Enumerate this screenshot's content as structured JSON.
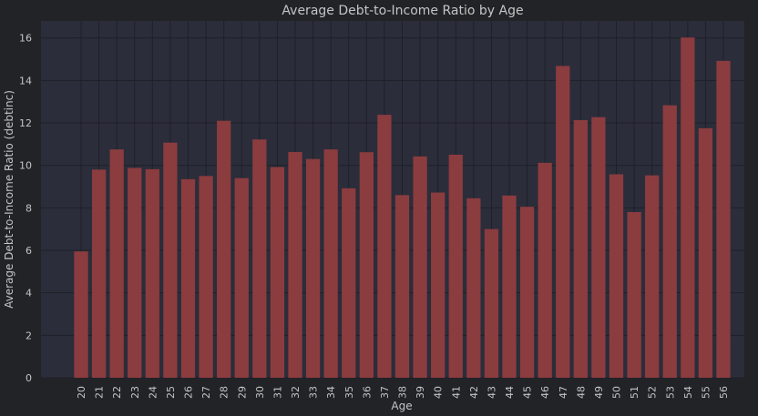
{
  "chart_data": {
    "type": "bar",
    "title": "Average Debt-to-Income Ratio by Age",
    "xlabel": "Age",
    "ylabel": "Average Debt-to-Income Ratio (debtinc)",
    "categories": [
      "20",
      "21",
      "22",
      "23",
      "24",
      "25",
      "26",
      "27",
      "28",
      "29",
      "30",
      "31",
      "32",
      "33",
      "34",
      "35",
      "36",
      "37",
      "38",
      "39",
      "40",
      "41",
      "42",
      "43",
      "44",
      "45",
      "46",
      "47",
      "48",
      "49",
      "50",
      "51",
      "52",
      "53",
      "54",
      "55",
      "56"
    ],
    "values": [
      5.95,
      9.8,
      10.75,
      9.88,
      9.82,
      11.07,
      9.35,
      9.5,
      12.1,
      9.4,
      11.22,
      9.92,
      10.63,
      10.3,
      10.75,
      8.92,
      10.62,
      12.38,
      8.6,
      10.42,
      8.72,
      10.5,
      8.45,
      7.0,
      8.58,
      8.05,
      10.12,
      14.68,
      12.13,
      12.27,
      9.58,
      7.8,
      9.53,
      12.83,
      16.02,
      11.75,
      14.92
    ],
    "ylim": [
      0,
      16.8
    ],
    "yticks": [
      0,
      2,
      4,
      6,
      8,
      10,
      12,
      14,
      16
    ],
    "grid": true,
    "colors": {
      "background": "#222326",
      "plot_area": "#2b2d3a",
      "bar": "#8b3c3f",
      "grid": "#1f2029",
      "text": "#c4c4c4"
    }
  }
}
